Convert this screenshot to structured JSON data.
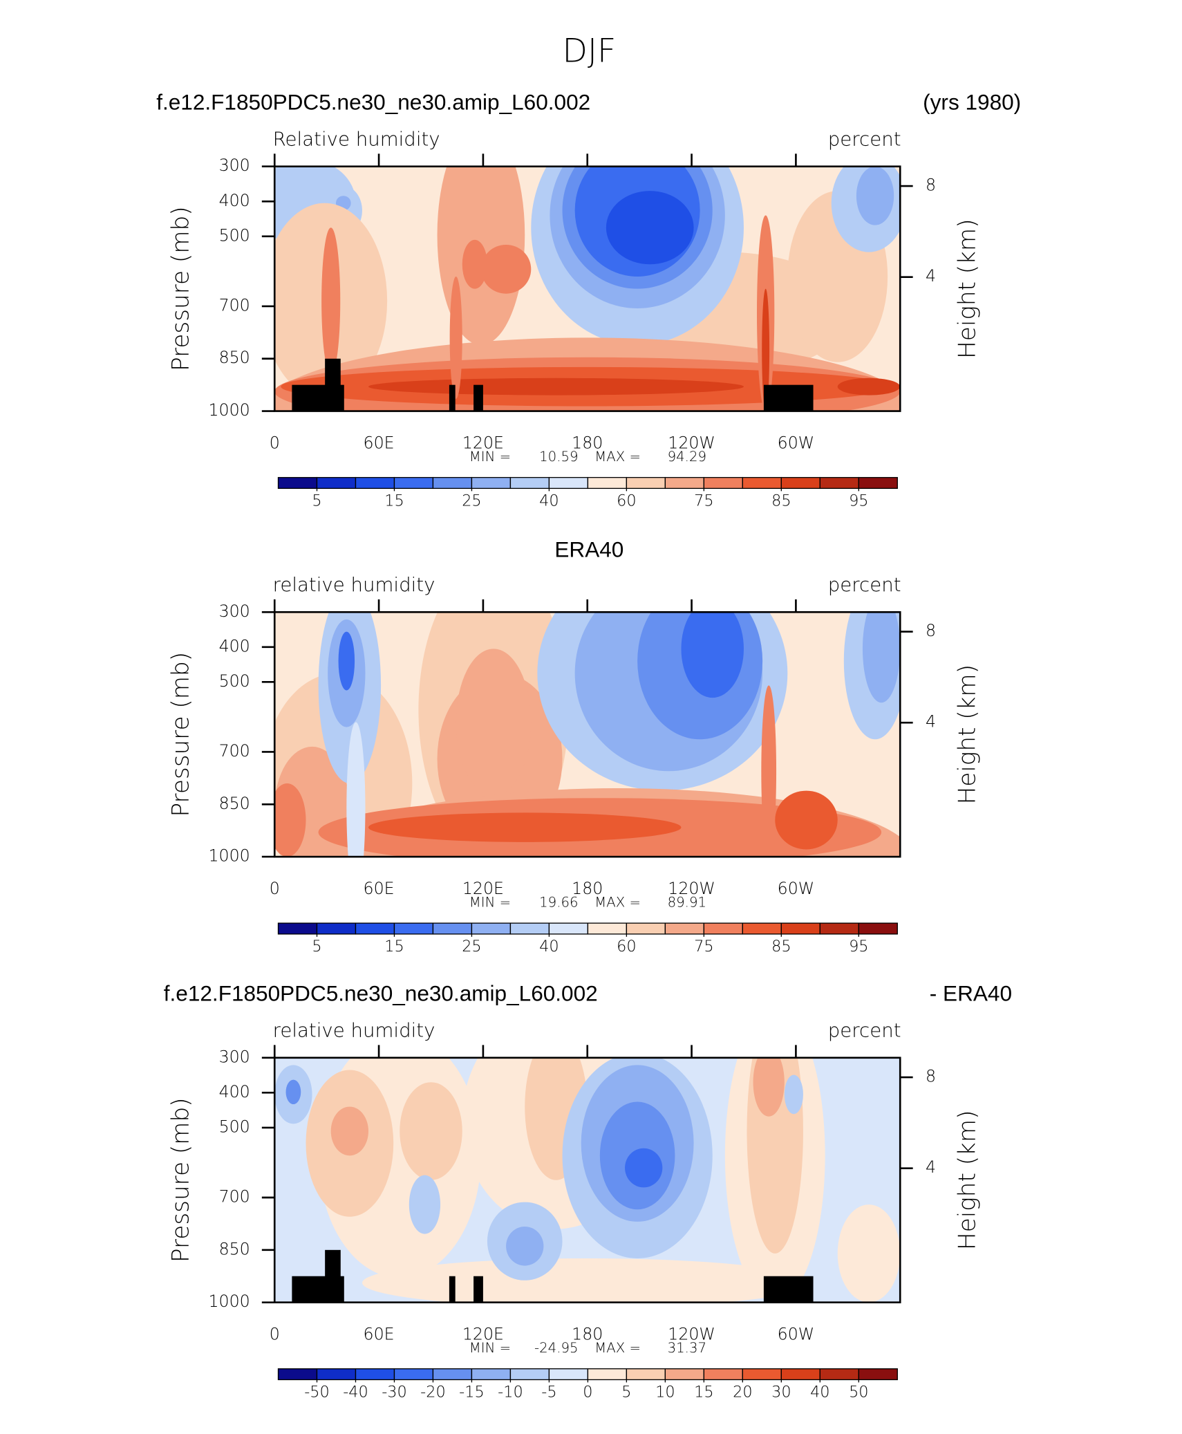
{
  "suptitle": "DJF",
  "chart_data": [
    {
      "type": "contour",
      "title": "f.e12.F1850PDC5.ne30_ne30.amip_L60.002",
      "title_right": "(yrs 1980)",
      "variable": "Relative humidity",
      "units": "percent",
      "ylabel": "Pressure (mb)",
      "y2label": "Height (km)",
      "ylim": [
        1000,
        300
      ],
      "yticks": [
        300,
        400,
        500,
        700,
        850,
        1000
      ],
      "y2ticks": [
        4,
        8
      ],
      "xlim": [
        0,
        360
      ],
      "xticks": [
        0,
        {
          "value": 60,
          "label": "60E"
        },
        {
          "value": 120,
          "label": "120E"
        },
        180,
        {
          "value": 240,
          "label": "120W"
        },
        {
          "value": 300,
          "label": "60W"
        }
      ],
      "min_label": "MIN =",
      "min": 10.59,
      "max_label": "MAX =",
      "max": 94.29,
      "colorbar": {
        "ticks": [
          5,
          15,
          25,
          40,
          60,
          75,
          85,
          95
        ],
        "colors": [
          "#0b0b8c",
          "#0f2dc8",
          "#1f4fe6",
          "#3a6cf0",
          "#6690f0",
          "#8fb0f2",
          "#b4cdf5",
          "#d9e6fa",
          "#fde9d8",
          "#f9cfb2",
          "#f4a98a",
          "#f0805e",
          "#ea5a30",
          "#d9401a",
          "#b52a14",
          "#8a0f0f"
        ]
      }
    },
    {
      "type": "contour",
      "title": "ERA40",
      "variable": "relative humidity",
      "units": "percent",
      "ylabel": "Pressure (mb)",
      "y2label": "Height (km)",
      "ylim": [
        1000,
        300
      ],
      "yticks": [
        300,
        400,
        500,
        700,
        850,
        1000
      ],
      "y2ticks": [
        4,
        8
      ],
      "xlim": [
        0,
        360
      ],
      "xticks": [
        0,
        {
          "value": 60,
          "label": "60E"
        },
        {
          "value": 120,
          "label": "120E"
        },
        180,
        {
          "value": 240,
          "label": "120W"
        },
        {
          "value": 300,
          "label": "60W"
        }
      ],
      "min_label": "MIN =",
      "min": 19.66,
      "max_label": "MAX =",
      "max": 89.91,
      "colorbar": {
        "ticks": [
          5,
          15,
          25,
          40,
          60,
          75,
          85,
          95
        ],
        "colors": [
          "#0b0b8c",
          "#0f2dc8",
          "#1f4fe6",
          "#3a6cf0",
          "#6690f0",
          "#8fb0f2",
          "#b4cdf5",
          "#d9e6fa",
          "#fde9d8",
          "#f9cfb2",
          "#f4a98a",
          "#f0805e",
          "#ea5a30",
          "#d9401a",
          "#b52a14",
          "#8a0f0f"
        ]
      }
    },
    {
      "type": "contour",
      "title": "f.e12.F1850PDC5.ne30_ne30.amip_L60.002",
      "title_right": "- ERA40",
      "variable": "relative humidity",
      "units": "percent",
      "ylabel": "Pressure (mb)",
      "y2label": "Height (km)",
      "ylim": [
        1000,
        300
      ],
      "yticks": [
        300,
        400,
        500,
        700,
        850,
        1000
      ],
      "y2ticks": [
        4,
        8
      ],
      "xlim": [
        0,
        360
      ],
      "xticks": [
        0,
        {
          "value": 60,
          "label": "60E"
        },
        {
          "value": 120,
          "label": "120E"
        },
        180,
        {
          "value": 240,
          "label": "120W"
        },
        {
          "value": 300,
          "label": "60W"
        }
      ],
      "min_label": "MIN =",
      "min": -24.95,
      "max_label": "MAX =",
      "max": 31.37,
      "colorbar": {
        "ticks": [
          -50,
          -40,
          -30,
          -20,
          -15,
          -10,
          -5,
          0,
          5,
          10,
          15,
          20,
          30,
          40,
          50
        ],
        "colors": [
          "#0b0b8c",
          "#0f2dc8",
          "#1f4fe6",
          "#3a6cf0",
          "#6690f0",
          "#8fb0f2",
          "#b4cdf5",
          "#d9e6fa",
          "#fde9d8",
          "#f9cfb2",
          "#f4a98a",
          "#f0805e",
          "#ea5a30",
          "#d9401a",
          "#b52a14",
          "#8a0f0f"
        ]
      }
    }
  ]
}
